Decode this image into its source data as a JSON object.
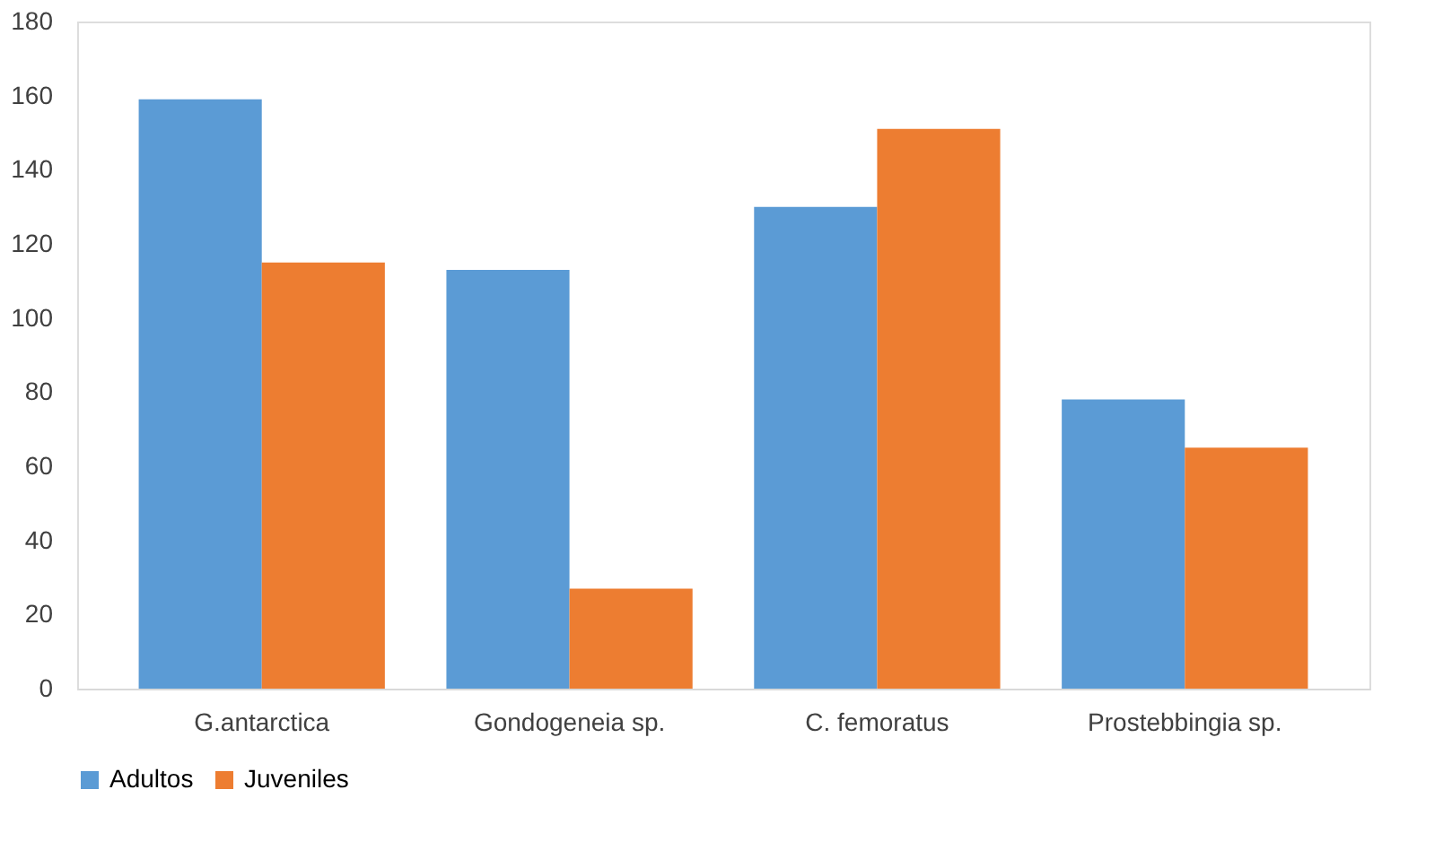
{
  "chart_data": {
    "type": "bar",
    "categories": [
      "G.antarctica",
      "Gondogeneia sp.",
      "C. femoratus",
      "Prostebbingia sp."
    ],
    "series": [
      {
        "name": "Adultos",
        "color": "#5b9bd5",
        "values": [
          159,
          113,
          130,
          78
        ]
      },
      {
        "name": "Juveniles",
        "color": "#ed7d31",
        "values": [
          115,
          27,
          151,
          65
        ]
      }
    ],
    "ylim": [
      0,
      180
    ],
    "yticks": [
      0,
      20,
      40,
      60,
      80,
      100,
      120,
      140,
      160,
      180
    ],
    "grid": false,
    "legend": "bottom"
  }
}
